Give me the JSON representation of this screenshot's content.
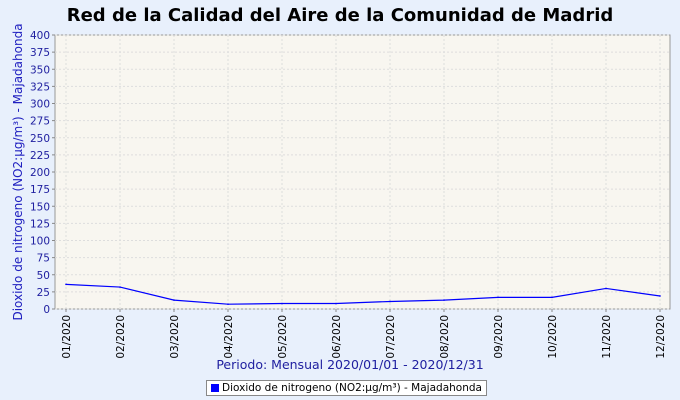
{
  "chart_data": {
    "type": "line",
    "title": "Red de la Calidad del Aire de la Comunidad de Madrid",
    "xlabel": "Periodo: Mensual 2020/01/01 - 2020/12/31",
    "ylabel": "Dioxido de nitrogeno (NO2:µg/m³) - Majadahonda",
    "categories": [
      "01/2020",
      "02/2020",
      "03/2020",
      "04/2020",
      "05/2020",
      "06/2020",
      "07/2020",
      "08/2020",
      "09/2020",
      "10/2020",
      "11/2020",
      "12/2020"
    ],
    "series": [
      {
        "name": "Dioxido de nitrogeno (NO2:µg/m³) - Majadahonda",
        "values": [
          36,
          32,
          13,
          7,
          8,
          8,
          11,
          13,
          17,
          17,
          30,
          19
        ],
        "color": "#0000ff"
      }
    ],
    "ylim": [
      0,
      400
    ],
    "yticks": [
      0,
      25,
      50,
      75,
      100,
      125,
      150,
      175,
      200,
      225,
      250,
      275,
      300,
      325,
      350,
      375,
      400
    ],
    "grid": true,
    "legend": "bottom"
  }
}
